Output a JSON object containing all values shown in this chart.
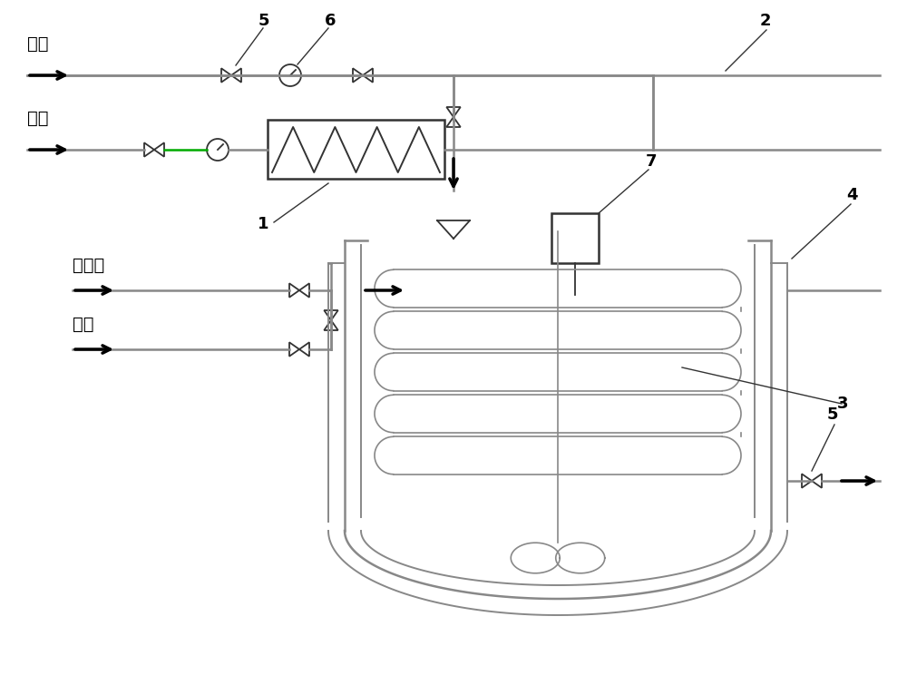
{
  "bg_color": "#ffffff",
  "line_color": "#888888",
  "dark_color": "#333333",
  "black": "#000000",
  "green_line": "#00aa00",
  "labels": {
    "jian": "碱液",
    "ti": "钛液",
    "cooling": "冷却水",
    "steam": "蒸汽",
    "num1": "1",
    "num2": "2",
    "num3": "3",
    "num4": "4",
    "num5a": "5",
    "num5b": "5",
    "num6": "6",
    "num7": "7"
  },
  "figsize": [
    10.0,
    7.55
  ]
}
